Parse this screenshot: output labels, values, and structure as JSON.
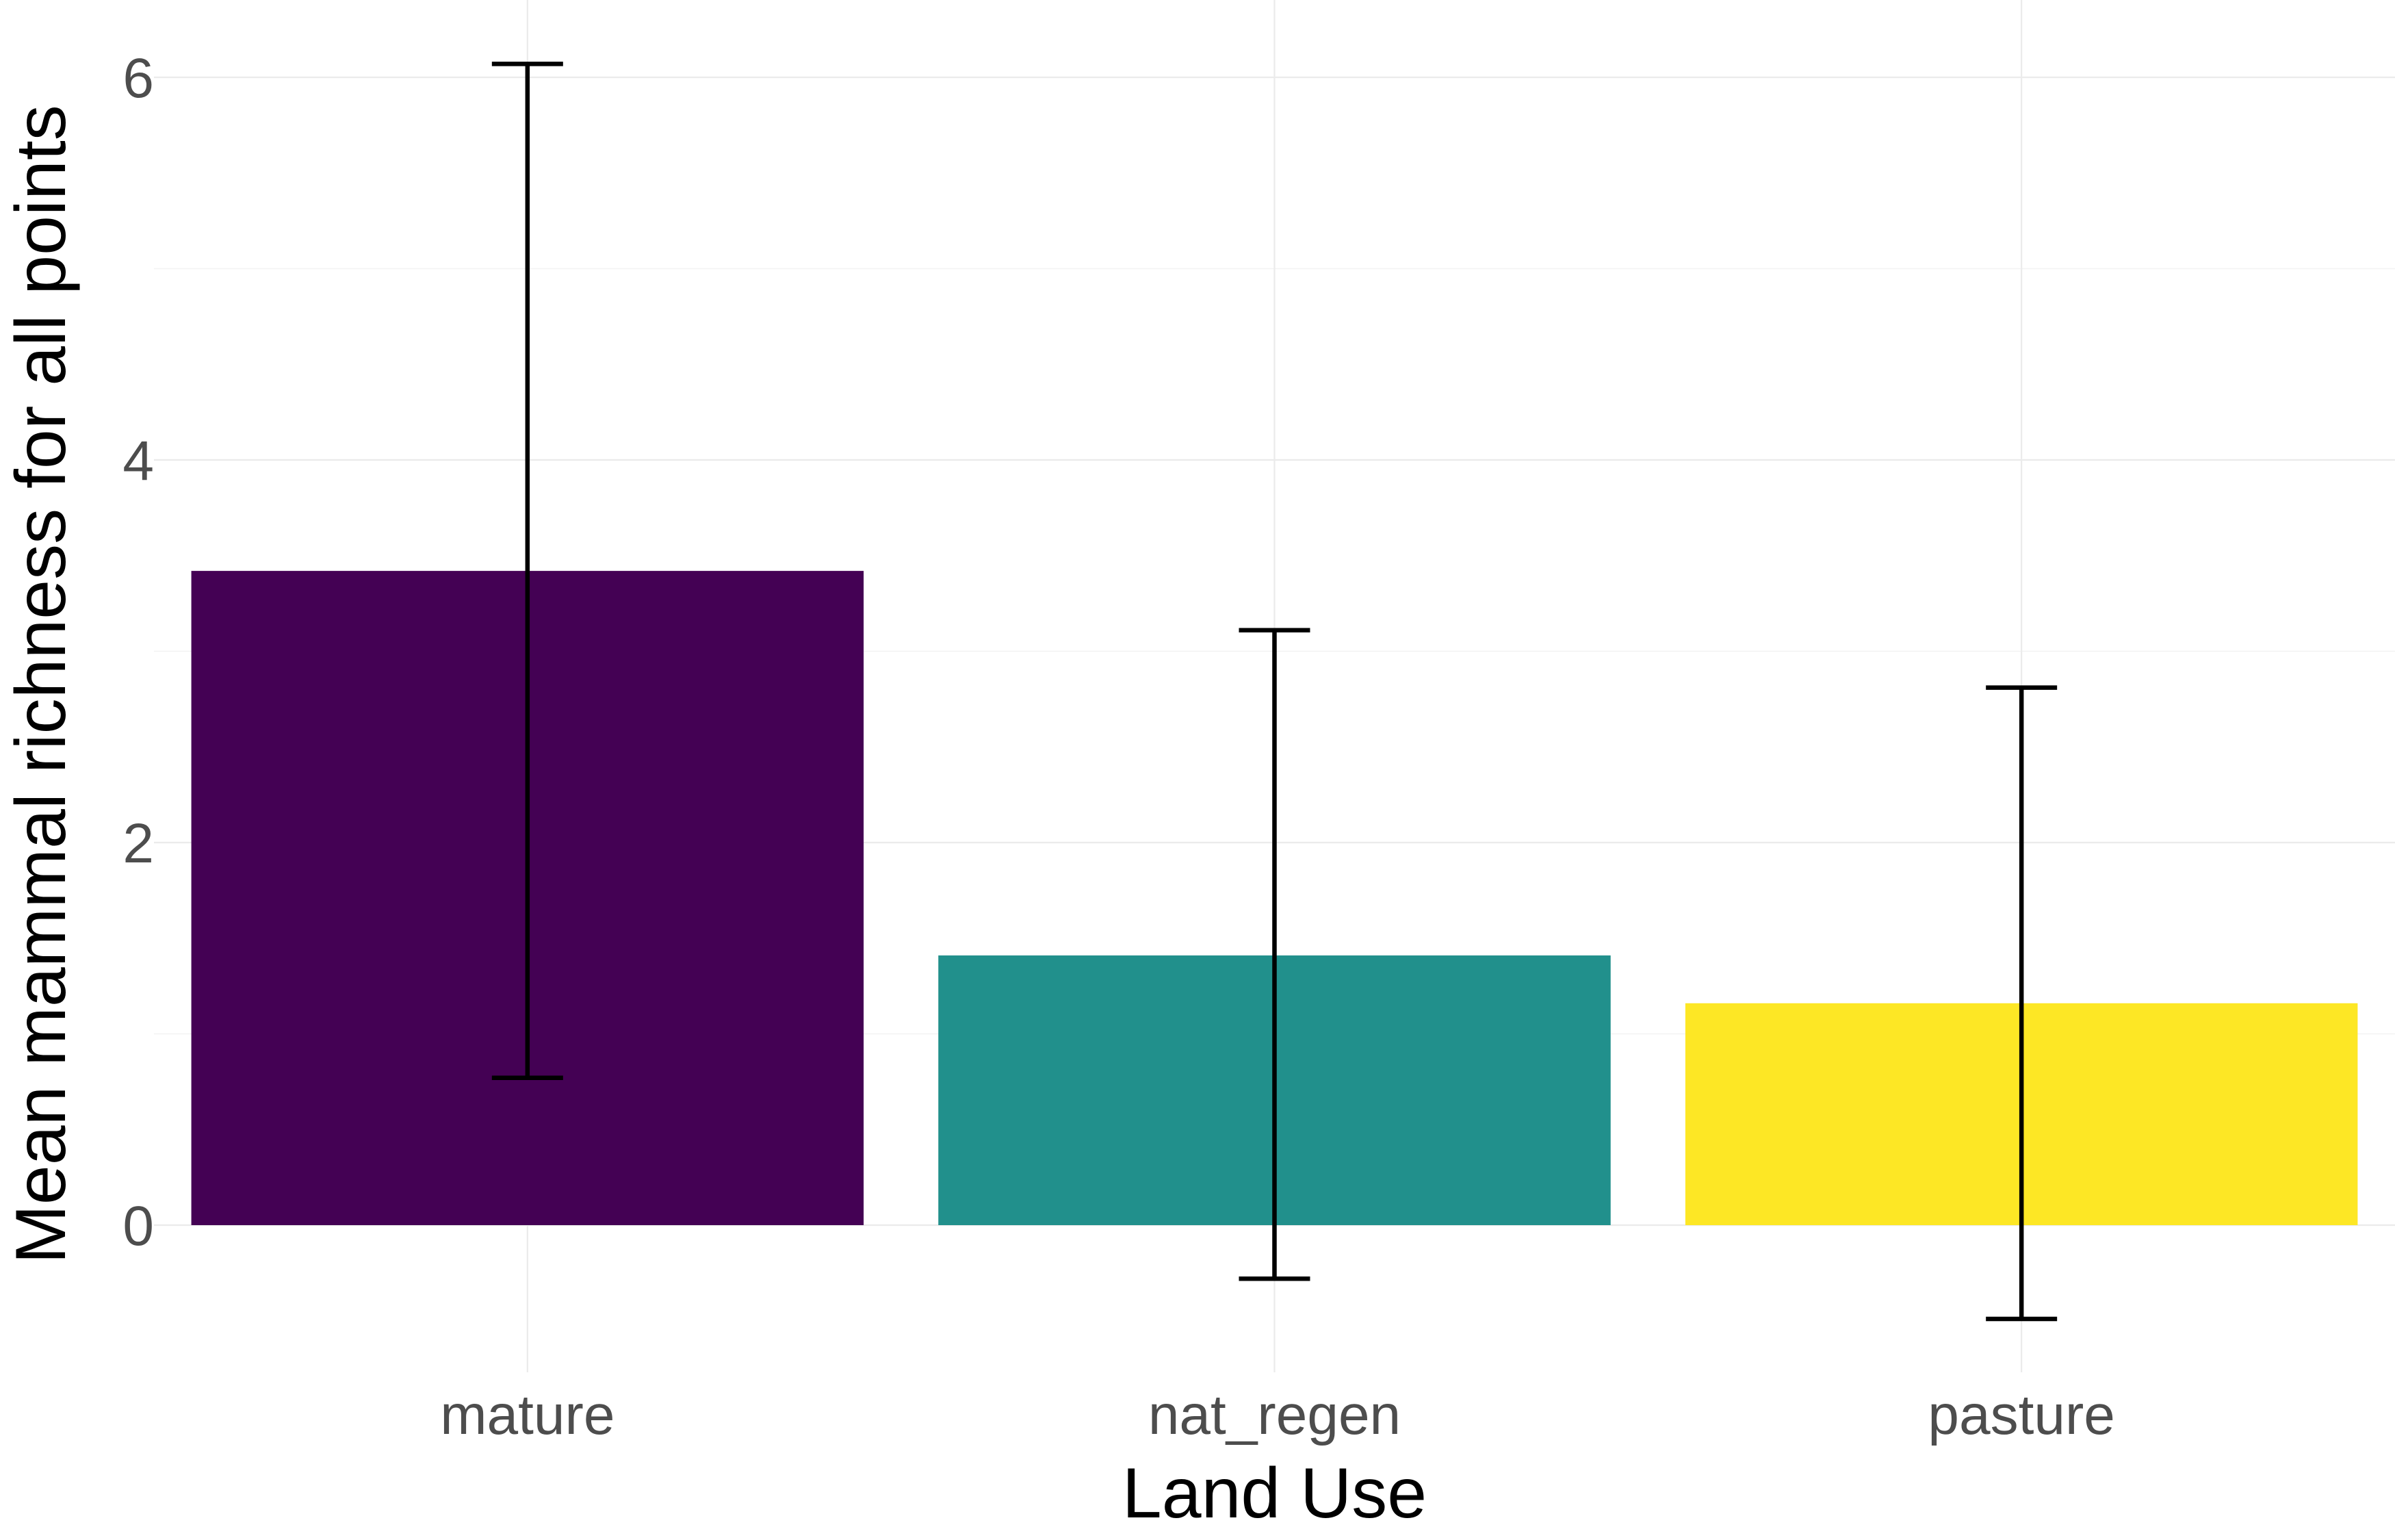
{
  "chart_data": {
    "type": "bar",
    "categories": [
      "mature",
      "nat_regen",
      "pasture"
    ],
    "values": [
      3.42,
      1.41,
      1.16
    ],
    "error_bars": [
      {
        "lower": 0.77,
        "upper": 6.07
      },
      {
        "lower": -0.28,
        "upper": 3.11
      },
      {
        "lower": -0.49,
        "upper": 2.81
      }
    ],
    "colors": [
      "#440154",
      "#21908C",
      "#FDE725"
    ],
    "title": "",
    "xlabel": "Land Use",
    "ylabel": "Mean mammal richness for all points",
    "ylim": [
      -0.78,
      6.35
    ],
    "yticks": [
      "0",
      "2",
      "4",
      "6"
    ],
    "grid": true,
    "legend": "none"
  }
}
